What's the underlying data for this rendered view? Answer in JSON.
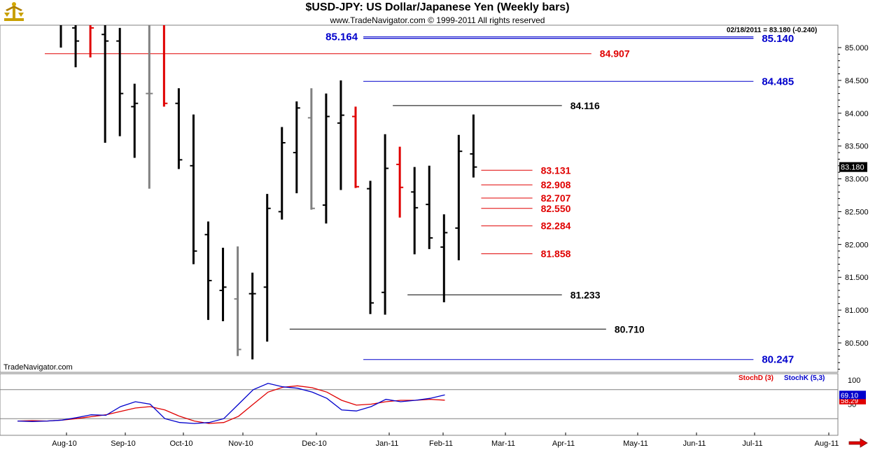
{
  "header": {
    "title": "$USD-JPY:  US Dollar/Japanese Yen  (Weekly bars)",
    "subtitle": "www.TradeNavigator.com © 1999-2011 All rights reserved",
    "quote": "02/18/2011 = 83.180 (-0.240)",
    "watermark": "TradeNavigator.com"
  },
  "colors": {
    "up": "#000000",
    "red": "#e00000",
    "gray": "#808080",
    "blue": "#0000cc",
    "stochD": "#e00000",
    "stochK": "#0000cc"
  },
  "chart_data": {
    "type": "ohlc",
    "title": "$USD-JPY:  US Dollar/Japanese Yen  (Weekly bars)",
    "ylim": [
      80.2,
      85.5
    ],
    "y_ticks": [
      "80.500",
      "81.000",
      "81.500",
      "82.000",
      "82.500",
      "83.000",
      "83.500",
      "84.000",
      "84.500",
      "85.000"
    ],
    "y_tick_values": [
      80.5,
      81.0,
      81.5,
      82.0,
      82.5,
      83.0,
      83.5,
      84.0,
      84.5,
      85.0
    ],
    "x_ticks": [
      "Aug-10",
      "Sep-10",
      "Oct-10",
      "Nov-10",
      "Dec-10",
      "Jan-11",
      "Feb-11",
      "Mar-11",
      "Apr-11",
      "May-11",
      "Jun-11",
      "Jul-11",
      "Aug-11"
    ],
    "last_price_label": "83.180",
    "bars": [
      {
        "o": 85.6,
        "h": 86.1,
        "l": 85.0,
        "c": 85.4,
        "color": "black"
      },
      {
        "o": 85.3,
        "h": 85.9,
        "l": 84.7,
        "c": 85.1,
        "color": "black"
      },
      {
        "o": 85.5,
        "h": 86.0,
        "l": 84.85,
        "c": 85.3,
        "color": "red"
      },
      {
        "o": 85.2,
        "h": 85.7,
        "l": 83.55,
        "c": 85.1,
        "color": "black"
      },
      {
        "o": 85.1,
        "h": 85.3,
        "l": 83.65,
        "c": 84.3,
        "color": "black"
      },
      {
        "o": 84.1,
        "h": 84.45,
        "l": 83.32,
        "c": 84.15,
        "color": "black"
      },
      {
        "o": 84.3,
        "h": 85.6,
        "l": 82.85,
        "c": 84.3,
        "color": "gray"
      },
      {
        "o": 85.8,
        "h": 86.0,
        "l": 84.1,
        "c": 84.15,
        "color": "red"
      },
      {
        "o": 84.15,
        "h": 84.38,
        "l": 83.15,
        "c": 83.29,
        "color": "black"
      },
      {
        "o": 83.2,
        "h": 83.98,
        "l": 81.7,
        "c": 81.9,
        "color": "black"
      },
      {
        "o": 82.15,
        "h": 82.35,
        "l": 80.85,
        "c": 81.45,
        "color": "black"
      },
      {
        "o": 81.3,
        "h": 81.95,
        "l": 80.83,
        "c": 81.35,
        "color": "black"
      },
      {
        "o": 81.17,
        "h": 81.97,
        "l": 80.3,
        "c": 80.4,
        "color": "gray"
      },
      {
        "o": 81.25,
        "h": 81.57,
        "l": 80.25,
        "c": 81.25,
        "color": "black"
      },
      {
        "o": 81.35,
        "h": 82.77,
        "l": 80.52,
        "c": 82.55,
        "color": "black"
      },
      {
        "o": 82.5,
        "h": 83.79,
        "l": 82.38,
        "c": 83.55,
        "color": "black"
      },
      {
        "o": 83.4,
        "h": 84.18,
        "l": 82.78,
        "c": 84.08,
        "color": "black"
      },
      {
        "o": 83.93,
        "h": 84.38,
        "l": 82.53,
        "c": 82.55,
        "color": "gray"
      },
      {
        "o": 82.6,
        "h": 84.3,
        "l": 82.32,
        "c": 83.95,
        "color": "black"
      },
      {
        "o": 83.85,
        "h": 84.5,
        "l": 82.83,
        "c": 83.97,
        "color": "black"
      },
      {
        "o": 83.95,
        "h": 84.1,
        "l": 82.86,
        "c": 82.88,
        "color": "red"
      },
      {
        "o": 82.85,
        "h": 82.97,
        "l": 80.94,
        "c": 81.11,
        "color": "black"
      },
      {
        "o": 81.27,
        "h": 83.68,
        "l": 80.93,
        "c": 83.16,
        "color": "black"
      },
      {
        "o": 83.22,
        "h": 83.49,
        "l": 82.41,
        "c": 82.87,
        "color": "red"
      },
      {
        "o": 82.8,
        "h": 83.18,
        "l": 81.85,
        "c": 82.56,
        "color": "black"
      },
      {
        "o": 82.61,
        "h": 83.2,
        "l": 81.93,
        "c": 82.1,
        "color": "black"
      },
      {
        "o": 81.96,
        "h": 82.46,
        "l": 81.12,
        "c": 82.18,
        "color": "black"
      },
      {
        "o": 82.25,
        "h": 83.67,
        "l": 81.76,
        "c": 83.42,
        "color": "black"
      },
      {
        "o": 83.38,
        "h": 83.98,
        "l": 83.02,
        "c": 83.18,
        "color": "black"
      }
    ],
    "levels": [
      {
        "label": "85.164",
        "value": 85.164,
        "color": "blue",
        "from_bar": 21,
        "to_bar": 47,
        "label_side": "left"
      },
      {
        "label": "85.140",
        "value": 85.14,
        "color": "blue",
        "from_bar": 21,
        "to_bar": 47,
        "label_side": "right"
      },
      {
        "label": "84.907",
        "value": 84.907,
        "color": "red",
        "from_bar": -1,
        "to_bar": 36,
        "label_side": "right"
      },
      {
        "label": "84.485",
        "value": 84.485,
        "color": "blue",
        "from_bar": 21,
        "to_bar": 47,
        "label_side": "right"
      },
      {
        "label": "84.116",
        "value": 84.116,
        "color": "black",
        "from_bar": 23,
        "to_bar": 34,
        "label_side": "right"
      },
      {
        "label": "83.131",
        "value": 83.131,
        "color": "red",
        "from_bar": 29,
        "to_bar": 32,
        "label_side": "right"
      },
      {
        "label": "82.908",
        "value": 82.908,
        "color": "red",
        "from_bar": 29,
        "to_bar": 32,
        "label_side": "right"
      },
      {
        "label": "82.707",
        "value": 82.707,
        "color": "red",
        "from_bar": 29,
        "to_bar": 32,
        "label_side": "right"
      },
      {
        "label": "82.550",
        "value": 82.55,
        "color": "red",
        "from_bar": 29,
        "to_bar": 32,
        "label_side": "right"
      },
      {
        "label": "82.284",
        "value": 82.284,
        "color": "red",
        "from_bar": 29,
        "to_bar": 32,
        "label_side": "right"
      },
      {
        "label": "81.858",
        "value": 81.858,
        "color": "red",
        "from_bar": 29,
        "to_bar": 32,
        "label_side": "right"
      },
      {
        "label": "81.233",
        "value": 81.233,
        "color": "black",
        "from_bar": 24,
        "to_bar": 34,
        "label_side": "right"
      },
      {
        "label": "80.710",
        "value": 80.71,
        "color": "black",
        "from_bar": 16,
        "to_bar": 37,
        "label_side": "right"
      },
      {
        "label": "80.247",
        "value": 80.247,
        "color": "blue",
        "from_bar": 21,
        "to_bar": 47,
        "label_side": "right"
      }
    ],
    "stochastic": {
      "ylim": [
        0,
        100
      ],
      "y_ticks": [
        "100",
        "50"
      ],
      "y_tick_values": [
        100,
        50
      ],
      "reference_lines": [
        80,
        20
      ],
      "series": [
        {
          "name": "StochD (3)",
          "last_label": "58.29",
          "color": "red",
          "values": [
            15,
            16,
            15,
            17,
            20,
            24,
            28,
            35,
            42,
            45,
            38,
            25,
            15,
            10,
            12,
            25,
            50,
            75,
            85,
            88,
            84,
            75,
            58,
            48,
            50,
            55,
            58,
            58,
            60,
            58.29
          ]
        },
        {
          "name": "StochK (5,3)",
          "last_label": "69.10",
          "color": "blue",
          "values": [
            15,
            14,
            15,
            17,
            22,
            28,
            27,
            45,
            55,
            50,
            20,
            12,
            10,
            12,
            20,
            50,
            80,
            93,
            86,
            83,
            75,
            62,
            38,
            36,
            45,
            60,
            55,
            58,
            62,
            69.1
          ]
        }
      ]
    }
  }
}
